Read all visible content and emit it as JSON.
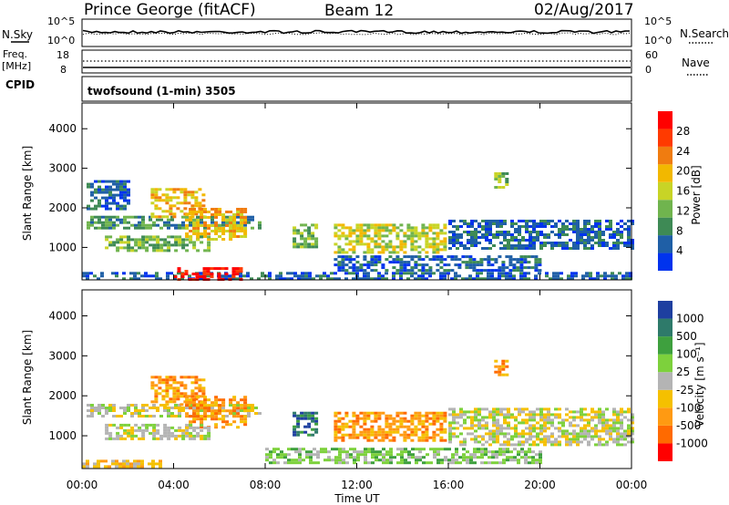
{
  "header": {
    "station": "Prince George (fitACF)",
    "beam": "Beam 12",
    "date": "02/Aug/2017"
  },
  "noise_panel": {
    "left_label": "N.Sky",
    "right_label": "N.Search",
    "left_ticks": [
      "10^5",
      "10^0"
    ],
    "right_ticks": [
      "10^5",
      "10^0"
    ]
  },
  "freq_panel": {
    "left_label_1": "Freq.",
    "left_label_2": "[MHz]",
    "left_ticks": [
      "18",
      "8"
    ],
    "right_label": "Nave",
    "right_ticks": [
      "60",
      "0"
    ],
    "cpid_label": "CPID",
    "mode_text": "twofsound (1-min) 3505"
  },
  "colors": {
    "power": [
      "#0033ee",
      "#1f5fa6",
      "#3e8a55",
      "#70b44e",
      "#c8d426",
      "#f2b800",
      "#f07c10",
      "#ff3a00",
      "#ff0000"
    ],
    "velocity": [
      "#ff0000",
      "#ff6a00",
      "#ff9a12",
      "#f5c000",
      "#b4b4b4",
      "#7dd13c",
      "#3ea03e",
      "#2e7a6a",
      "#1e3fa0"
    ],
    "ground_scatter": "#b4b4b4"
  },
  "chart_data": [
    {
      "type": "heatmap",
      "name": "power",
      "ylabel": "Slant Range [km]",
      "ylim": [
        180,
        4650
      ],
      "xlim_hours": [
        0,
        24
      ],
      "y_ticks": [
        1000,
        2000,
        3000,
        4000
      ],
      "colorbar": {
        "label": "Power [dB]",
        "range": [
          0,
          32
        ],
        "ticks": [
          4,
          8,
          12,
          16,
          20,
          24,
          28
        ]
      },
      "regions": [
        {
          "t": [
            0.0,
            24.0
          ],
          "r": [
            200,
            380
          ],
          "level": 1
        },
        {
          "t": [
            4.0,
            7.0
          ],
          "r": [
            200,
            500
          ],
          "level": 8
        },
        {
          "t": [
            0.2,
            7.8
          ],
          "r": [
            1500,
            1800
          ],
          "level": 2
        },
        {
          "t": [
            3.0,
            5.3
          ],
          "r": [
            1800,
            2500
          ],
          "level": 5
        },
        {
          "t": [
            4.5,
            7.2
          ],
          "r": [
            1200,
            2000
          ],
          "level": 5
        },
        {
          "t": [
            1.0,
            5.5
          ],
          "r": [
            900,
            1300
          ],
          "level": 3
        },
        {
          "t": [
            0.2,
            2.0
          ],
          "r": [
            2000,
            2700
          ],
          "level": 1
        },
        {
          "t": [
            11.0,
            15.8
          ],
          "r": [
            900,
            1600
          ],
          "level": 4
        },
        {
          "t": [
            11.0,
            20.0
          ],
          "r": [
            400,
            800
          ],
          "level": 1
        },
        {
          "t": [
            16.0,
            24.0
          ],
          "r": [
            1000,
            1700
          ],
          "level": 1
        },
        {
          "t": [
            18.0,
            18.5
          ],
          "r": [
            2500,
            2900
          ],
          "level": 3
        },
        {
          "t": [
            9.2,
            10.2
          ],
          "r": [
            1000,
            1600
          ],
          "level": 3
        }
      ]
    },
    {
      "type": "heatmap",
      "name": "velocity",
      "xlabel": "Time UT",
      "ylabel": "Slant Range [km]",
      "ylim": [
        180,
        4650
      ],
      "xlim_hours": [
        0,
        24
      ],
      "x_ticks": [
        "00:00",
        "04:00",
        "08:00",
        "12:00",
        "16:00",
        "20:00",
        "00:00"
      ],
      "y_ticks": [
        1000,
        2000,
        3000,
        4000
      ],
      "colorbar": {
        "label": "Velocity [m s⁻¹]",
        "ticks": [
          "1000",
          "500",
          "100",
          "25",
          "-25",
          "-100",
          "-500",
          "-1000"
        ]
      },
      "regions": [
        {
          "t": [
            0.0,
            3.5
          ],
          "r": [
            200,
            400
          ],
          "cls": 3
        },
        {
          "t": [
            0.2,
            7.8
          ],
          "r": [
            1500,
            1800
          ],
          "cls": 4
        },
        {
          "t": [
            3.0,
            5.3
          ],
          "r": [
            1800,
            2500
          ],
          "cls": 2
        },
        {
          "t": [
            4.5,
            7.2
          ],
          "r": [
            1200,
            2000
          ],
          "cls": 2
        },
        {
          "t": [
            1.0,
            5.5
          ],
          "r": [
            900,
            1300
          ],
          "cls": 4
        },
        {
          "t": [
            8.0,
            20.0
          ],
          "r": [
            300,
            700
          ],
          "cls": 5
        },
        {
          "t": [
            11.0,
            15.8
          ],
          "r": [
            900,
            1600
          ],
          "cls": 2
        },
        {
          "t": [
            16.0,
            24.0
          ],
          "r": [
            800,
            1700
          ],
          "cls": 4
        },
        {
          "t": [
            18.0,
            18.5
          ],
          "r": [
            2500,
            2900
          ],
          "cls": 2
        },
        {
          "t": [
            9.2,
            10.2
          ],
          "r": [
            1000,
            1600
          ],
          "cls": 7
        }
      ]
    }
  ]
}
